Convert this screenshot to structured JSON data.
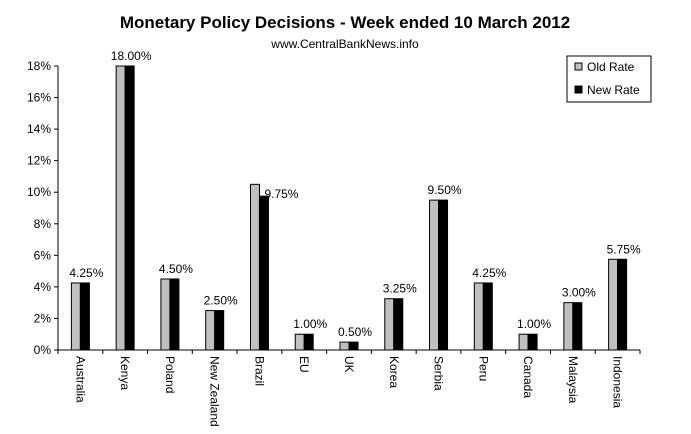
{
  "chart_data": {
    "type": "bar",
    "title": "Monetary Policy Decisions - Week ended 10 March 2012",
    "subtitle": "www.CentralBankNews.info",
    "xlabel": "",
    "ylabel": "",
    "ylim": [
      0,
      18
    ],
    "y_ticks": [
      "0%",
      "2%",
      "4%",
      "6%",
      "8%",
      "10%",
      "12%",
      "14%",
      "16%",
      "18%"
    ],
    "grid": false,
    "legend_position": "top-right",
    "categories": [
      "Australia",
      "Kenya",
      "Poland",
      "New Zealand",
      "Brazil",
      "EU",
      "UK",
      "Korea",
      "Serbia",
      "Peru",
      "Canada",
      "Malaysia",
      "Indonesia"
    ],
    "series": [
      {
        "name": "Old Rate",
        "color": "#c0c0c0",
        "values": [
          4.25,
          18.0,
          4.5,
          2.5,
          10.5,
          1.0,
          0.5,
          3.25,
          9.5,
          4.25,
          1.0,
          3.0,
          5.75
        ]
      },
      {
        "name": "New Rate",
        "color": "#000000",
        "values": [
          4.25,
          18.0,
          4.5,
          2.5,
          9.75,
          1.0,
          0.5,
          3.25,
          9.5,
          4.25,
          1.0,
          3.0,
          5.75
        ]
      }
    ],
    "data_labels": [
      "4.25%",
      "18.00%",
      "4.50%",
      "2.50%",
      "9.75%",
      "1.00%",
      "0.50%",
      "3.25%",
      "9.50%",
      "4.25%",
      "1.00%",
      "3.00%",
      "5.75%"
    ]
  }
}
